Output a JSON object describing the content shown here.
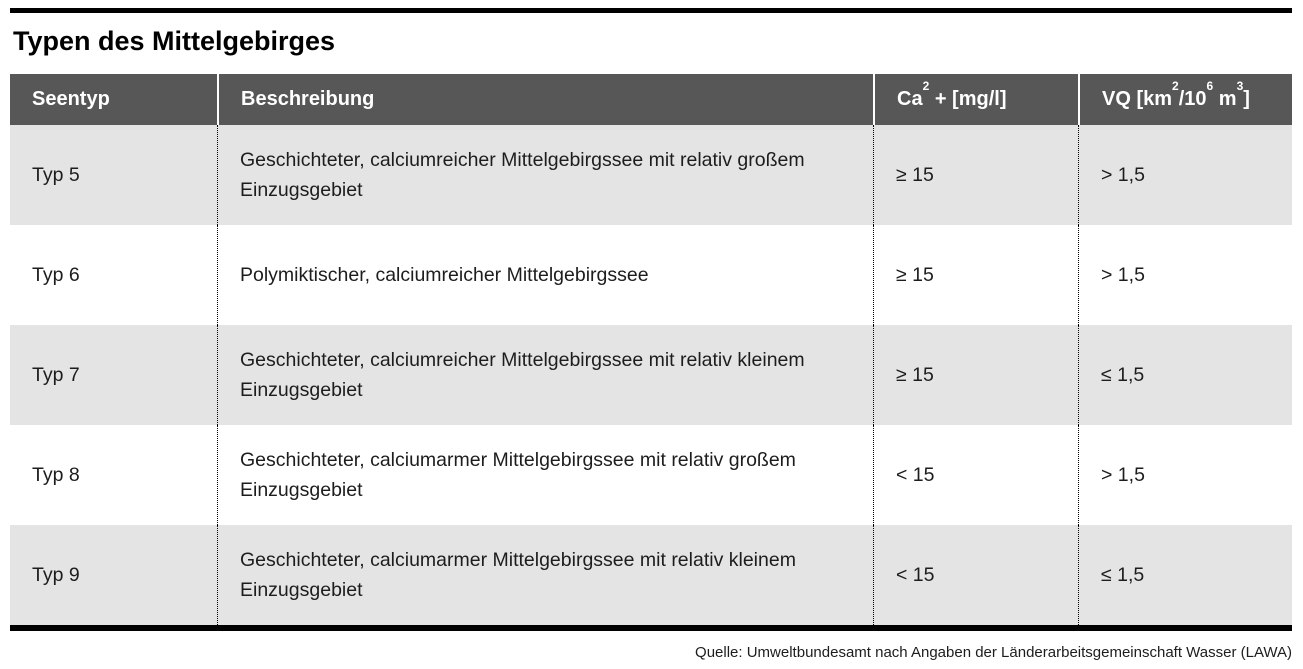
{
  "title": "Typen des Mittelgebirges",
  "colors": {
    "bar": "#000000",
    "header_bg": "#575757",
    "header_text": "#ffffff",
    "row_alt_bg": "#e4e4e4",
    "body_text": "#1d1d1b"
  },
  "table": {
    "header": {
      "seentyp": "Seentyp",
      "beschreibung": "Beschreibung",
      "ca": {
        "base": "Ca",
        "sup": "2",
        "rest": " + [mg/l]"
      },
      "vq": {
        "p1": "VQ [km",
        "s1": "2",
        "p2": "/10",
        "s2": "6",
        "p3": " m",
        "s3": "3",
        "p4": "]"
      }
    },
    "rows": [
      {
        "type": "Typ 5",
        "description": "Geschichteter, calciumreicher Mittelgebirgssee mit relativ großem Einzugsgebiet",
        "ca": "≥ 15",
        "vq": "> 1,5"
      },
      {
        "type": "Typ 6",
        "description": "Polymiktischer, calciumreicher Mittelgebirgssee",
        "ca": "≥ 15",
        "vq": "> 1,5"
      },
      {
        "type": "Typ 7",
        "description": "Geschichteter, calciumreicher Mittelgebirgssee mit relativ kleinem Einzugsgebiet",
        "ca": "≥ 15",
        "vq": "≤ 1,5"
      },
      {
        "type": "Typ 8",
        "description": "Geschichteter, calciumarmer Mittelgebirgssee mit relativ großem Einzugsgebiet",
        "ca": "< 15",
        "vq": "> 1,5"
      },
      {
        "type": "Typ 9",
        "description": "Geschichteter, calciumarmer Mittelgebirgssee mit relativ kleinem Einzugsgebiet",
        "ca": "< 15",
        "vq": "≤ 1,5"
      }
    ]
  },
  "footer": {
    "source": "Quelle: Umweltbundesamt nach Angaben der Länderarbeitsgemeinschaft Wasser (LAWA)"
  },
  "chart_data": {
    "type": "table",
    "title": "Typen des Mittelgebirges",
    "columns": [
      "Seentyp",
      "Beschreibung",
      "Ca² + [mg/l]",
      "VQ [km²/10⁶ m³]"
    ],
    "rows": [
      [
        "Typ 5",
        "Geschichteter, calciumreicher Mittelgebirgssee mit relativ großem Einzugsgebiet",
        "≥ 15",
        "> 1,5"
      ],
      [
        "Typ 6",
        "Polymiktischer, calciumreicher Mittelgebirgssee",
        "≥ 15",
        "> 1,5"
      ],
      [
        "Typ 7",
        "Geschichteter, calciumreicher Mittelgebirgssee mit relativ kleinem Einzugsgebiet",
        "≥ 15",
        "≤ 1,5"
      ],
      [
        "Typ 8",
        "Geschichteter, calciumarmer Mittelgebirgssee mit relativ großem Einzugsgebiet",
        "< 15",
        "> 1,5"
      ],
      [
        "Typ 9",
        "Geschichteter, calciumarmer Mittelgebirgssee mit relativ kleinem Einzugsgebiet",
        "< 15",
        "≤ 1,5"
      ]
    ],
    "source": "Quelle: Umweltbundesamt nach Angaben der Länderarbeitsgemeinschaft Wasser (LAWA)",
    "layout": {
      "zebra_rows": "odd rows gray",
      "header_style": "dark gray, white bold text",
      "column_separators": "dotted"
    }
  }
}
